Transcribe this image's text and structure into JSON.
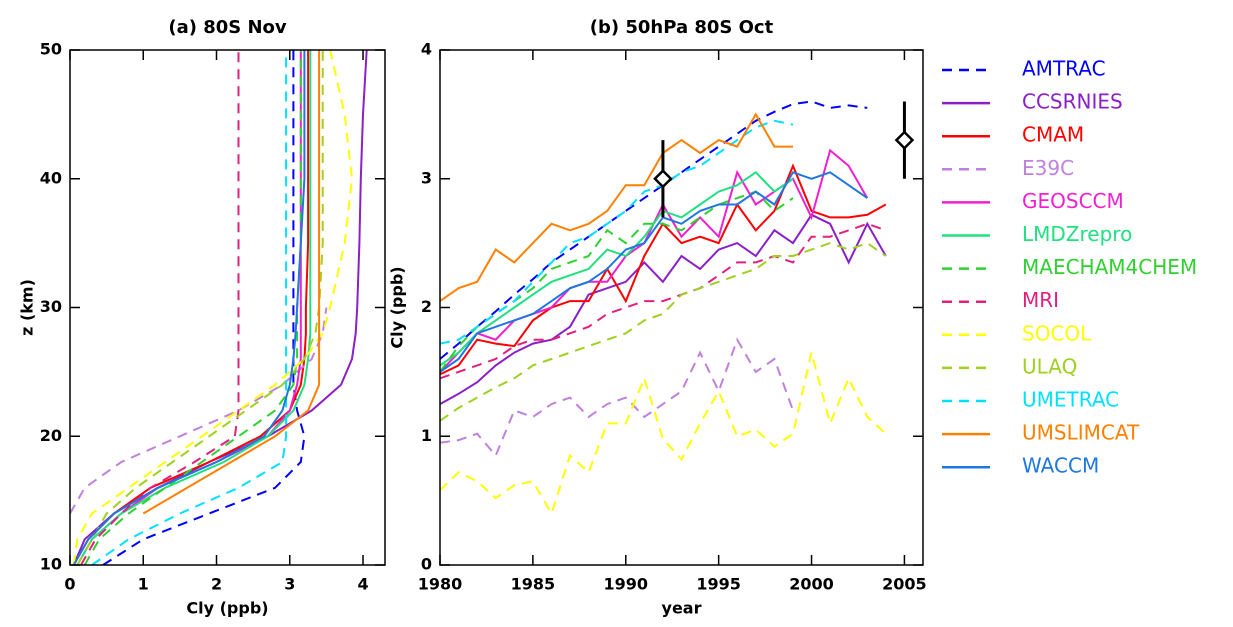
{
  "chart_data": [
    {
      "type": "line",
      "title": "(a) 80S Nov",
      "xlabel": "Cly (ppb)",
      "ylabel": "z (km)",
      "xlim": [
        0,
        4.3
      ],
      "xticks": [
        0,
        1,
        2,
        3,
        4
      ],
      "ylim": [
        10,
        50
      ],
      "yticks": [
        10,
        20,
        30,
        40,
        50
      ],
      "y": [
        10,
        12,
        14,
        16,
        18,
        20,
        22,
        24,
        26,
        28,
        30,
        35,
        40,
        45,
        50
      ],
      "series": [
        {
          "color": "#0000ff",
          "dash": true,
          "values": [
            0.45,
            1.0,
            1.9,
            2.8,
            3.15,
            3.2,
            3.1,
            3.05,
            3.05,
            3.05,
            3.05,
            3.05,
            3.05,
            3.05,
            3.05
          ]
        },
        {
          "color": "#8b1fc8",
          "dash": false,
          "values": [
            0.05,
            0.2,
            0.6,
            1.2,
            1.9,
            2.7,
            3.3,
            3.7,
            3.85,
            3.9,
            3.92,
            3.95,
            3.97,
            4.0,
            4.05
          ]
        },
        {
          "color": "#ff0000",
          "dash": false,
          "values": [
            0.05,
            0.25,
            0.6,
            1.1,
            1.9,
            2.6,
            3.0,
            3.15,
            3.2,
            3.22,
            3.22,
            3.25,
            3.25,
            3.25,
            3.25
          ]
        },
        {
          "color": "#c080e0",
          "dash": true,
          "values": [
            null,
            null,
            0.0,
            0.2,
            0.7,
            1.5,
            2.3,
            2.9,
            3.3,
            3.45,
            3.5,
            null,
            null,
            null,
            null
          ]
        },
        {
          "color": "#f020d0",
          "dash": false,
          "values": [
            0.1,
            0.3,
            0.7,
            1.2,
            2.0,
            2.7,
            3.0,
            3.1,
            3.15,
            3.15,
            3.15,
            3.15,
            3.15,
            3.15,
            3.15
          ]
        },
        {
          "color": "#20e080",
          "dash": false,
          "values": [
            0.1,
            0.3,
            0.7,
            1.3,
            2.1,
            2.7,
            3.05,
            3.2,
            3.25,
            3.28,
            3.28,
            3.28,
            3.28,
            3.28,
            3.28
          ]
        },
        {
          "color": "#30d030",
          "dash": true,
          "values": [
            0.2,
            0.4,
            0.8,
            1.3,
            1.8,
            2.3,
            2.8,
            3.05,
            3.1,
            3.1,
            3.1,
            3.15,
            3.15,
            3.15,
            3.15
          ]
        },
        {
          "color": "#e0207f",
          "dash": true,
          "values": [
            0.15,
            0.35,
            0.7,
            1.1,
            1.7,
            2.25,
            2.3,
            2.3,
            2.3,
            2.3,
            2.3,
            2.3,
            2.3,
            2.3,
            2.3
          ]
        },
        {
          "color": "#ffff00",
          "dash": true,
          "values": [
            0.05,
            0.1,
            0.3,
            0.8,
            1.3,
            1.8,
            2.3,
            2.8,
            3.2,
            3.45,
            3.55,
            3.75,
            3.85,
            3.75,
            3.55
          ]
        },
        {
          "color": "#a0d020",
          "dash": true,
          "values": [
            0.1,
            0.3,
            0.5,
            0.9,
            1.4,
            1.9,
            2.4,
            2.9,
            3.2,
            3.35,
            3.4,
            3.45,
            3.45,
            3.45,
            3.45
          ]
        },
        {
          "color": "#00e0ff",
          "dash": true,
          "values": [
            0.3,
            0.8,
            1.5,
            2.3,
            2.9,
            2.95,
            2.95,
            2.95,
            2.95,
            2.95,
            2.95,
            2.95,
            2.95,
            2.95,
            2.95
          ]
        },
        {
          "color": "#ff8000",
          "dash": false,
          "values": [
            null,
            null,
            1.0,
            1.6,
            2.2,
            2.8,
            3.25,
            3.4,
            3.4,
            3.4,
            3.4,
            3.4,
            3.4,
            3.4,
            3.4
          ]
        },
        {
          "color": "#1f77e0",
          "dash": false,
          "values": [
            0.05,
            0.25,
            0.6,
            1.2,
            2.0,
            2.65,
            2.9,
            3.0,
            3.05,
            3.08,
            3.1,
            3.15,
            3.2,
            3.2,
            3.2
          ]
        }
      ]
    },
    {
      "type": "line",
      "title": "(b) 50hPa 80S Oct",
      "xlabel": "year",
      "ylabel": "Cly (ppb)",
      "legend": "right",
      "xlim": [
        1980,
        2006
      ],
      "xticks": [
        1980,
        1985,
        1990,
        1995,
        2000,
        2005
      ],
      "ylim": [
        0,
        4
      ],
      "yticks": [
        0,
        1,
        2,
        3,
        4
      ],
      "x": [
        1980,
        1981,
        1982,
        1983,
        1984,
        1985,
        1986,
        1987,
        1988,
        1989,
        1990,
        1991,
        1992,
        1993,
        1994,
        1995,
        1996,
        1997,
        1998,
        1999,
        2000,
        2001,
        2002,
        2003,
        2004
      ],
      "series": [
        {
          "name": "AMTRAC",
          "color": "#0000ff",
          "dash": true,
          "values": [
            1.6,
            1.72,
            1.85,
            1.97,
            2.1,
            2.22,
            2.35,
            2.45,
            2.55,
            2.65,
            2.75,
            2.85,
            2.95,
            3.05,
            3.15,
            3.25,
            3.35,
            3.45,
            3.52,
            3.58,
            3.6,
            3.55,
            3.57,
            3.55,
            null
          ]
        },
        {
          "name": "CCSRNIES",
          "color": "#8b1fc8",
          "dash": false,
          "values": [
            1.25,
            1.33,
            1.42,
            1.55,
            1.65,
            1.72,
            1.75,
            1.85,
            2.1,
            2.15,
            2.2,
            2.35,
            2.2,
            2.4,
            2.3,
            2.45,
            2.5,
            2.4,
            2.6,
            2.5,
            2.72,
            2.65,
            2.35,
            2.65,
            2.4
          ]
        },
        {
          "name": "CMAM",
          "color": "#ff0000",
          "dash": false,
          "values": [
            1.48,
            1.55,
            1.75,
            1.72,
            1.7,
            1.9,
            2.0,
            2.05,
            2.05,
            2.3,
            2.05,
            2.4,
            2.65,
            2.5,
            2.55,
            2.5,
            2.8,
            2.6,
            2.75,
            3.1,
            2.75,
            2.7,
            2.7,
            2.72,
            2.8
          ]
        },
        {
          "name": "E39C",
          "color": "#c080e0",
          "dash": true,
          "values": [
            0.95,
            0.97,
            1.02,
            0.85,
            1.2,
            1.15,
            1.25,
            1.3,
            1.15,
            1.25,
            1.3,
            1.15,
            1.25,
            1.35,
            1.65,
            1.35,
            1.75,
            1.5,
            1.6,
            1.2,
            null,
            null,
            null,
            null,
            null
          ]
        },
        {
          "name": "GEOSCCM",
          "color": "#f020d0",
          "dash": false,
          "values": [
            1.5,
            1.65,
            1.8,
            1.75,
            1.9,
            1.95,
            2.0,
            2.15,
            2.2,
            2.2,
            2.4,
            2.5,
            2.8,
            2.55,
            2.7,
            2.55,
            3.05,
            2.8,
            2.9,
            3.0,
            2.7,
            3.22,
            3.1,
            2.85,
            null
          ]
        },
        {
          "name": "LMDZrepro",
          "color": "#20e080",
          "dash": false,
          "values": [
            1.55,
            1.65,
            1.8,
            1.9,
            2.0,
            2.1,
            2.2,
            2.25,
            2.3,
            2.45,
            2.4,
            2.55,
            2.75,
            2.7,
            2.8,
            2.9,
            2.95,
            3.05,
            2.9,
            3.0,
            null,
            null,
            null,
            null,
            null
          ]
        },
        {
          "name": "MAECHAM4CHEM",
          "color": "#30d030",
          "dash": true,
          "values": [
            1.5,
            1.7,
            1.85,
            1.95,
            2.05,
            2.15,
            2.3,
            2.35,
            2.4,
            2.6,
            2.5,
            2.65,
            2.65,
            2.6,
            2.7,
            2.8,
            2.85,
            2.9,
            2.75,
            2.85,
            null,
            null,
            null,
            null,
            null
          ]
        },
        {
          "name": "MRI",
          "color": "#e0207f",
          "dash": true,
          "values": [
            1.45,
            1.5,
            1.55,
            1.6,
            1.7,
            1.75,
            1.75,
            1.8,
            1.85,
            1.95,
            2.0,
            2.05,
            2.05,
            2.1,
            2.15,
            2.25,
            2.35,
            2.35,
            2.4,
            2.35,
            2.55,
            2.55,
            2.6,
            2.65,
            2.6
          ]
        },
        {
          "name": "SOCOL",
          "color": "#ffff00",
          "dash": true,
          "values": [
            0.58,
            0.72,
            0.65,
            0.52,
            0.62,
            0.65,
            0.4,
            0.85,
            0.72,
            1.1,
            1.1,
            1.45,
            0.98,
            0.82,
            1.1,
            1.35,
            1.0,
            1.05,
            0.92,
            1.02,
            1.65,
            1.1,
            1.45,
            1.15,
            1.02
          ]
        },
        {
          "name": "ULAQ",
          "color": "#a0d020",
          "dash": true,
          "values": [
            1.12,
            1.22,
            1.3,
            1.38,
            1.45,
            1.55,
            1.6,
            1.65,
            1.7,
            1.75,
            1.8,
            1.9,
            1.95,
            2.1,
            2.15,
            2.2,
            2.25,
            2.3,
            2.4,
            2.4,
            2.45,
            2.5,
            2.45,
            2.5,
            2.4
          ]
        },
        {
          "name": "UMETRAC",
          "color": "#00e0ff",
          "dash": true,
          "values": [
            1.72,
            1.75,
            1.85,
            1.95,
            2.05,
            2.2,
            2.35,
            2.5,
            2.55,
            2.65,
            2.75,
            2.9,
            2.95,
            3.05,
            3.1,
            3.2,
            3.3,
            3.4,
            3.45,
            3.42,
            null,
            null,
            null,
            null,
            null
          ]
        },
        {
          "name": "UMSLIMCAT",
          "color": "#ff8000",
          "dash": false,
          "values": [
            2.05,
            2.15,
            2.2,
            2.45,
            2.35,
            2.5,
            2.65,
            2.6,
            2.65,
            2.75,
            2.95,
            2.95,
            3.2,
            3.3,
            3.2,
            3.3,
            3.25,
            3.5,
            3.25,
            3.25,
            null,
            null,
            null,
            null,
            null
          ]
        },
        {
          "name": "WACCM",
          "color": "#1f77e0",
          "dash": false,
          "values": [
            1.5,
            1.6,
            1.8,
            1.85,
            1.9,
            1.95,
            2.05,
            2.15,
            2.2,
            2.3,
            2.45,
            2.5,
            2.7,
            2.65,
            2.75,
            2.8,
            2.8,
            2.9,
            2.8,
            3.05,
            3.0,
            3.05,
            2.95,
            2.85,
            null
          ]
        }
      ],
      "observations": {
        "color": "#000000",
        "x": [
          1992,
          2005
        ],
        "values": [
          3.0,
          3.3
        ],
        "errors": [
          0.3,
          0.3
        ]
      }
    }
  ]
}
